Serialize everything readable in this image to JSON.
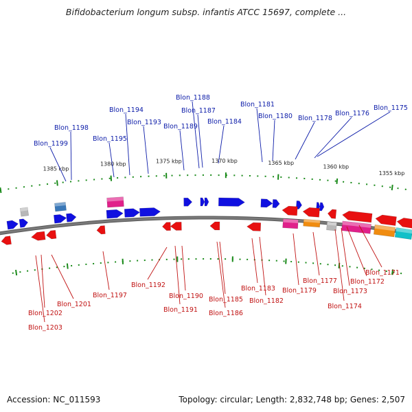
{
  "title": "Bifidobacterium longum subsp. infantis ATCC 15697, complete ...",
  "accession": "Accession: NC_011593",
  "summary": "Topology: circular; Length: 2,832,748 bp; Genes: 2,507",
  "colors": {
    "forward": "#1010e0",
    "reverse": "#e81010",
    "backbone": "#7a7a7a",
    "tick": "#1a8a1a",
    "label_top": "#0a1aa8",
    "label_bot": "#c01010",
    "magenta": "#e0208a",
    "orange": "#f08c10",
    "cyan": "#10c0c8",
    "gray": "#b8b8b8",
    "steelblue": "#3a78b8"
  },
  "kbp_labels": [
    "1385 kbp",
    "1380 kbp",
    "1375 kbp",
    "1370 kbp",
    "1365 kbp",
    "1360 kbp",
    "1355 kbp"
  ],
  "top_genes": [
    "Blon_1199",
    "Blon_1198",
    "Blon_1195",
    "Blon_1194",
    "Blon_1193",
    "Blon_1189",
    "Blon_1188",
    "Blon_1187",
    "Blon_1184",
    "Blon_1181",
    "Blon_1180",
    "Blon_1178",
    "Blon_1176",
    "Blon_1175"
  ],
  "bottom_genes": [
    "Blon_1203",
    "Blon_1202",
    "Blon_1201",
    "Blon_1197",
    "Blon_1192",
    "Blon_1191",
    "Blon_1190",
    "Blon_1186",
    "Blon_1185",
    "Blon_1183",
    "Blon_1182",
    "Blon_1179",
    "Blon_1177",
    "Blon_1174",
    "Blon_1173",
    "Blon_1172",
    "Blon_1171"
  ]
}
